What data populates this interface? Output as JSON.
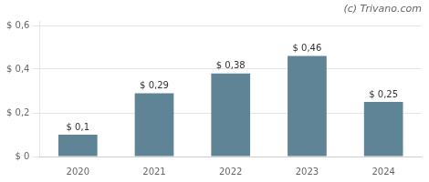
{
  "chart_data": {
    "type": "bar",
    "categories": [
      "2020",
      "2021",
      "2022",
      "2023",
      "2024"
    ],
    "values": [
      0.1,
      0.29,
      0.38,
      0.46,
      0.25
    ],
    "value_labels": [
      "$ 0,1",
      "$ 0,29",
      "$ 0,38",
      "$ 0,46",
      "$ 0,25"
    ],
    "data_labels": true,
    "color": "#5f8496",
    "ylim": [
      0,
      0.62
    ],
    "yticks": [
      {
        "value": 0,
        "label": "$ 0"
      },
      {
        "value": 0.2,
        "label": "$ 0,2"
      },
      {
        "value": 0.4,
        "label": "$ 0,4"
      },
      {
        "value": 0.6,
        "label": "$ 0,6"
      }
    ],
    "grid": true,
    "annotation": "(c) Trivano.com"
  }
}
